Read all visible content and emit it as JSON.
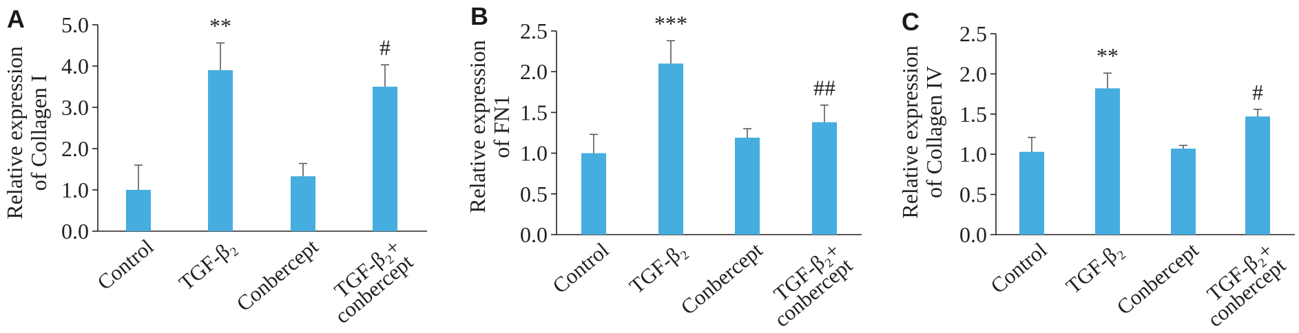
{
  "colors": {
    "bar": "#45ADDF",
    "error_bar": "#5a5a5a",
    "axis": "#231f20",
    "text": "#231f20"
  },
  "chart_data": [
    {
      "panel": "A",
      "type": "bar",
      "ylabel": [
        "Relative expression",
        "of Collagen I"
      ],
      "categories": [
        "Control",
        "TGF-β₂",
        "Conbercept",
        "TGF-β₂+ conbercept"
      ],
      "values": [
        1.0,
        3.9,
        1.33,
        3.5
      ],
      "error": [
        0.6,
        0.66,
        0.31,
        0.53
      ],
      "annotations": [
        null,
        "**",
        null,
        "#"
      ],
      "ylim": [
        0,
        5
      ],
      "yticks": [
        0,
        1,
        2,
        3,
        4,
        5
      ],
      "ytick_labels": [
        "0.0",
        "1.0",
        "2.0",
        "3.0",
        "4.0",
        "5.0"
      ],
      "grid": false,
      "legend": "none"
    },
    {
      "panel": "B",
      "type": "bar",
      "ylabel": [
        "Relative expression",
        "of FN1"
      ],
      "categories": [
        "Control",
        "TGF-β₂",
        "Conbercept",
        "TGF-β₂+ conbercept"
      ],
      "values": [
        1.0,
        2.1,
        1.19,
        1.38
      ],
      "error": [
        0.23,
        0.28,
        0.11,
        0.21
      ],
      "annotations": [
        null,
        "***",
        null,
        "##"
      ],
      "ylim": [
        0,
        2.5
      ],
      "yticks": [
        0,
        0.5,
        1.0,
        1.5,
        2.0,
        2.5
      ],
      "ytick_labels": [
        "0.0",
        "0.5",
        "1.0",
        "1.5",
        "2.0",
        "2.5"
      ],
      "grid": false,
      "legend": "none"
    },
    {
      "panel": "C",
      "type": "bar",
      "ylabel": [
        "Relative expression",
        "of Collagen IV"
      ],
      "categories": [
        "Control",
        "TGF-β₂",
        "Conbercept",
        "TGF-β₂+ conbercept"
      ],
      "values": [
        1.03,
        1.82,
        1.07,
        1.47
      ],
      "error": [
        0.18,
        0.19,
        0.04,
        0.09
      ],
      "annotations": [
        null,
        "**",
        null,
        "#"
      ],
      "ylim": [
        0,
        2.5
      ],
      "yticks": [
        0,
        0.5,
        1.0,
        1.5,
        2.0,
        2.5
      ],
      "ytick_labels": [
        "0.0",
        "0.5",
        "1.0",
        "1.5",
        "2.0",
        "2.5"
      ],
      "grid": false,
      "legend": "none"
    }
  ]
}
